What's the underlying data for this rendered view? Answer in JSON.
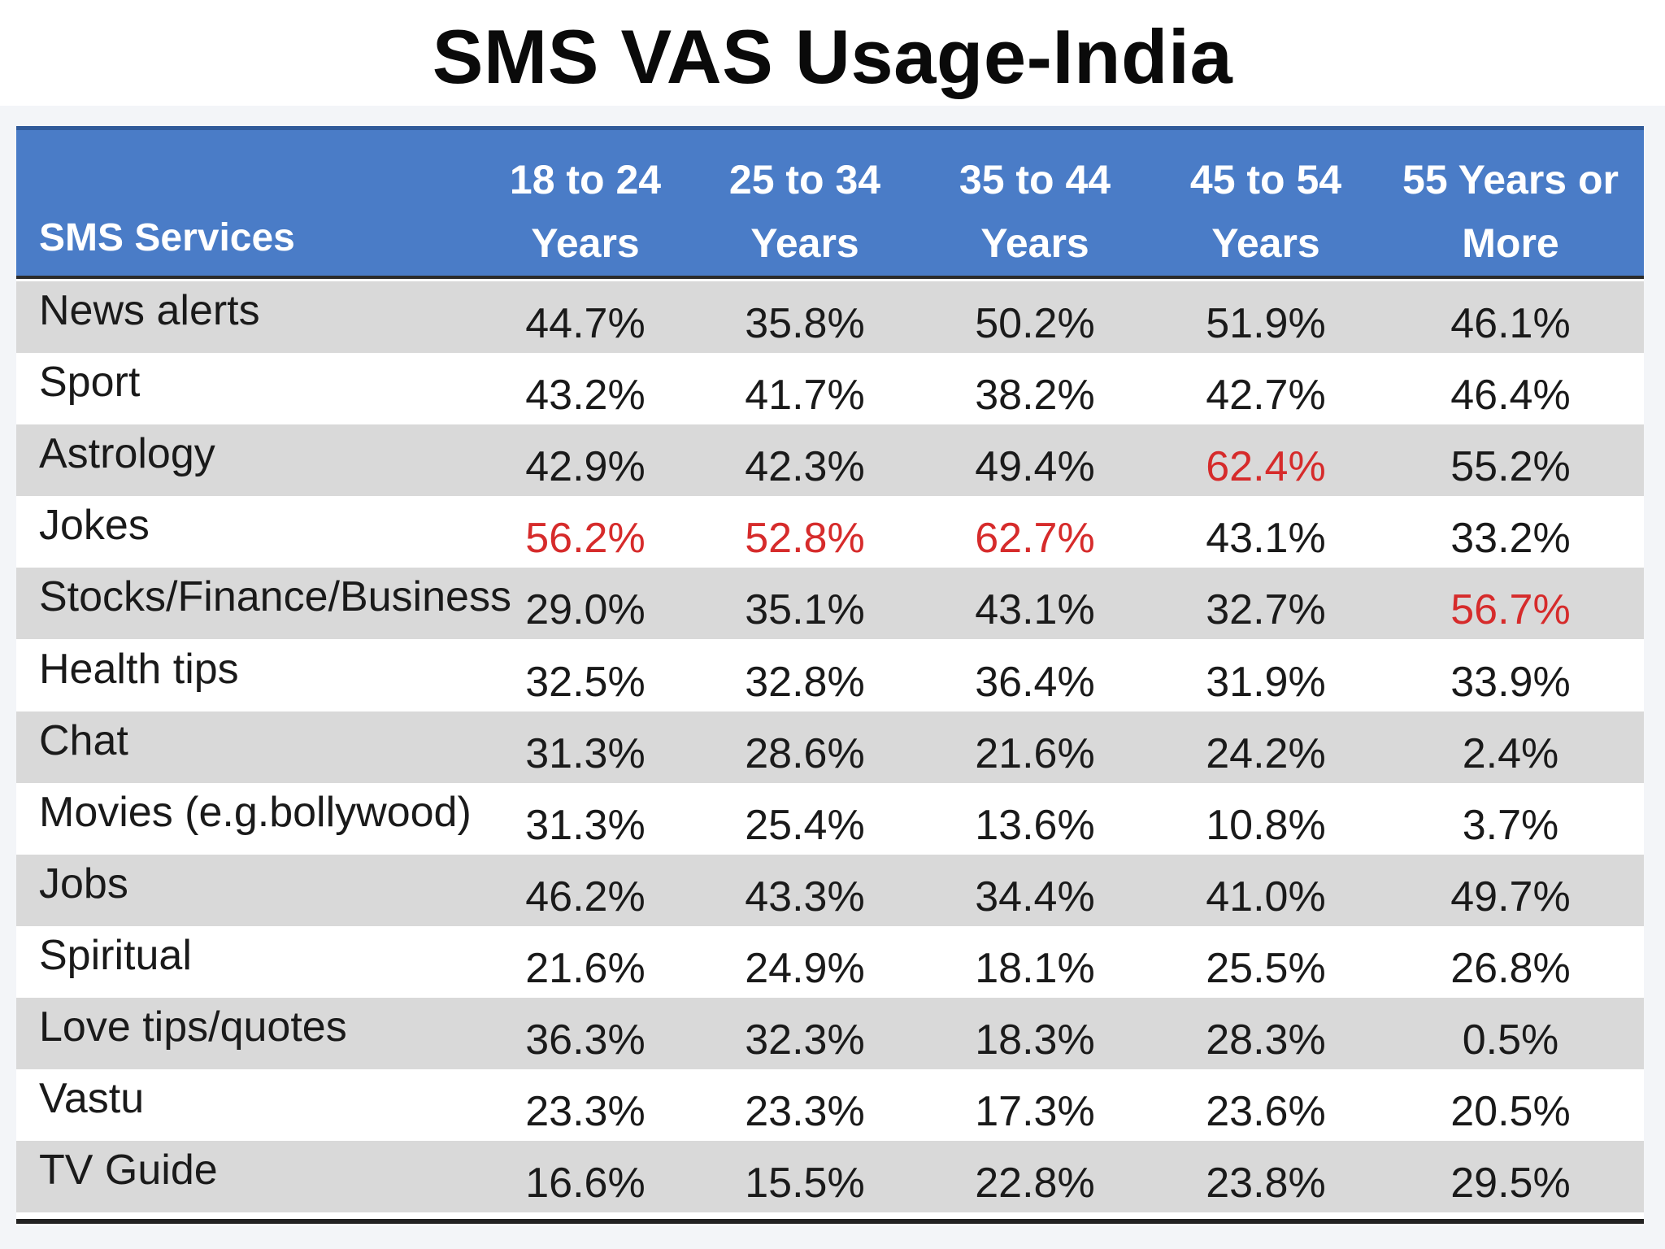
{
  "title": "SMS VAS Usage-India",
  "colors": {
    "header_bg": "#4a7cc7",
    "header_text": "#ffffff",
    "row_shade": "#d9d9d9",
    "highlight": "#d62b2b"
  },
  "chart_data": {
    "type": "table",
    "title": "SMS VAS Usage-India",
    "columns": [
      "SMS Services",
      "18 to 24\nYears",
      "25 to 34\nYears",
      "35 to 44\nYears",
      "45 to 54\nYears",
      "55 Years or\nMore"
    ],
    "rows": [
      {
        "service": "News alerts",
        "values": [
          "44.7%",
          "35.8%",
          "50.2%",
          "51.9%",
          "46.1%"
        ],
        "highlight": []
      },
      {
        "service": "Sport",
        "values": [
          "43.2%",
          "41.7%",
          "38.2%",
          "42.7%",
          "46.4%"
        ],
        "highlight": []
      },
      {
        "service": "Astrology",
        "values": [
          "42.9%",
          "42.3%",
          "49.4%",
          "62.4%",
          "55.2%"
        ],
        "highlight": [
          3
        ]
      },
      {
        "service": "Jokes",
        "values": [
          "56.2%",
          "52.8%",
          "62.7%",
          "43.1%",
          "33.2%"
        ],
        "highlight": [
          0,
          1,
          2
        ]
      },
      {
        "service": "Stocks/Finance/Business",
        "values": [
          "29.0%",
          "35.1%",
          "43.1%",
          "32.7%",
          "56.7%"
        ],
        "highlight": [
          4
        ]
      },
      {
        "service": "Health tips",
        "values": [
          "32.5%",
          "32.8%",
          "36.4%",
          "31.9%",
          "33.9%"
        ],
        "highlight": []
      },
      {
        "service": "Chat",
        "values": [
          "31.3%",
          "28.6%",
          "21.6%",
          "24.2%",
          "2.4%"
        ],
        "highlight": []
      },
      {
        "service": "Movies (e.g.bollywood)",
        "values": [
          "31.3%",
          "25.4%",
          "13.6%",
          "10.8%",
          "3.7%"
        ],
        "highlight": []
      },
      {
        "service": "Jobs",
        "values": [
          "46.2%",
          "43.3%",
          "34.4%",
          "41.0%",
          "49.7%"
        ],
        "highlight": []
      },
      {
        "service": "Spiritual",
        "values": [
          "21.6%",
          "24.9%",
          "18.1%",
          "25.5%",
          "26.8%"
        ],
        "highlight": []
      },
      {
        "service": "Love tips/quotes",
        "values": [
          "36.3%",
          "32.3%",
          "18.3%",
          "28.3%",
          "0.5%"
        ],
        "highlight": []
      },
      {
        "service": "Vastu",
        "values": [
          "23.3%",
          "23.3%",
          "17.3%",
          "23.6%",
          "20.5%"
        ],
        "highlight": []
      },
      {
        "service": "TV Guide",
        "values": [
          "16.6%",
          "15.5%",
          "22.8%",
          "23.8%",
          "29.5%"
        ],
        "highlight": []
      }
    ]
  }
}
